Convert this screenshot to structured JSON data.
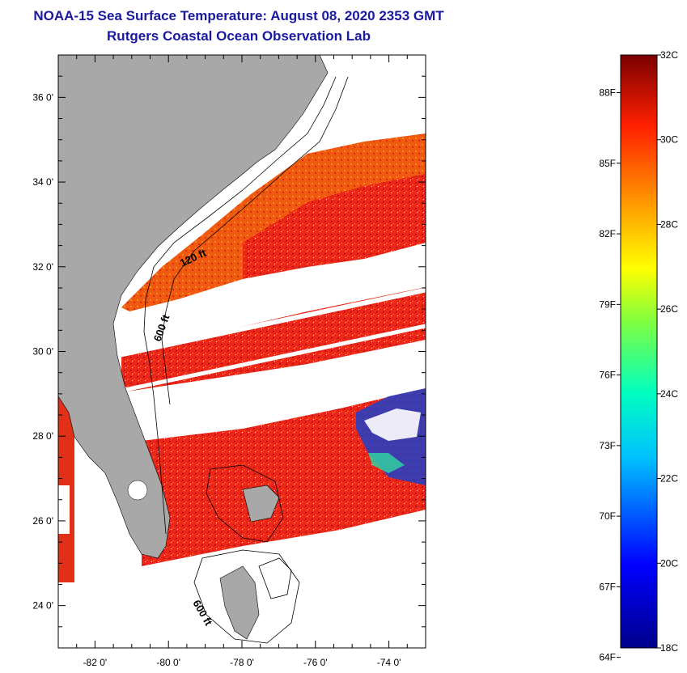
{
  "header": {
    "title": "NOAA-15 Sea Surface Temperature:  August 08, 2020 2353 GMT",
    "subtitle": "Rutgers Coastal Ocean Observation Lab"
  },
  "map": {
    "lat_range": [
      23,
      37
    ],
    "lon_range": [
      -83,
      -73
    ],
    "lat_ticks": [
      "36 0'",
      "34 0'",
      "32 0'",
      "30 0'",
      "28 0'",
      "26 0'",
      "24 0'"
    ],
    "lon_ticks": [
      "-82 0'",
      "-80 0'",
      "-78 0'",
      "-76 0'",
      "-74 0'"
    ],
    "contour_labels": [
      "120 ft",
      "600 ft",
      "600 ft"
    ],
    "colors": {
      "land": "#a8a8a8",
      "water_missing": "#ffffff",
      "sst_main": "#e8261a"
    }
  },
  "colorbar": {
    "celsius_labels": [
      "32C",
      "30C",
      "28C",
      "26C",
      "24C",
      "22C",
      "20C",
      "18C"
    ],
    "fahrenheit_labels": [
      "88F",
      "85F",
      "82F",
      "79F",
      "76F",
      "73F",
      "70F",
      "67F",
      "64F"
    ],
    "range_c": [
      18,
      32
    ]
  }
}
